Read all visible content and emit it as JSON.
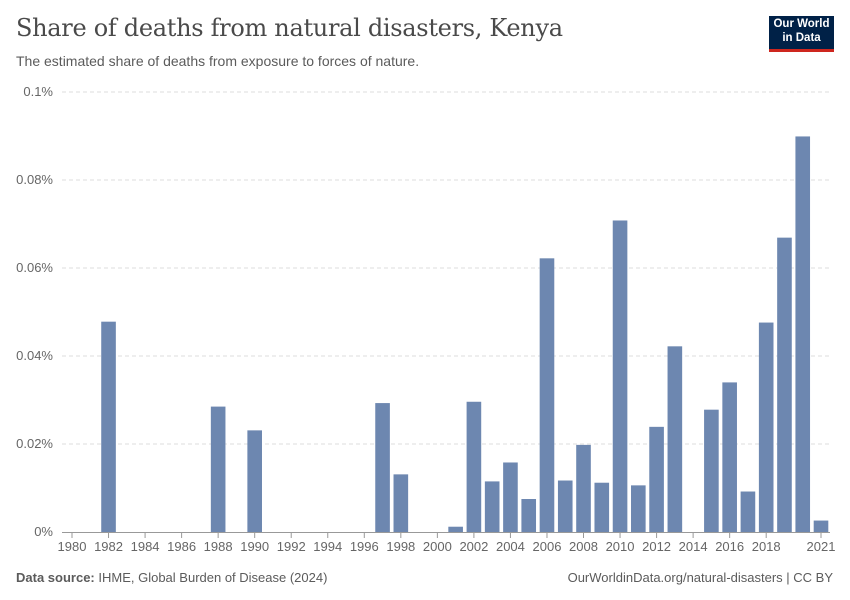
{
  "header": {
    "title": "Share of deaths from natural disasters, Kenya",
    "subtitle": "The estimated share of deaths from exposure to forces of nature."
  },
  "logo": {
    "line1": "Our World",
    "line2": "in Data"
  },
  "footer": {
    "source_label": "Data source:",
    "source_text": "IHME, Global Burden of Disease (2024)",
    "link_text": "OurWorldinData.org/natural-disasters | CC BY"
  },
  "colors": {
    "bar": "#6d87b0",
    "grid": "#dddddd",
    "axis": "#999999",
    "text": "#666666"
  },
  "chart_data": {
    "type": "bar",
    "title": "Share of deaths from natural disasters, Kenya",
    "xlabel": "",
    "ylabel": "",
    "ylim": [
      0,
      0.1
    ],
    "yticks": [
      0,
      0.02,
      0.04,
      0.06,
      0.08,
      0.1
    ],
    "ytick_labels": [
      "0%",
      "0.02%",
      "0.04%",
      "0.06%",
      "0.08%",
      "0.1%"
    ],
    "xlim": [
      1980,
      2021
    ],
    "xticks": [
      1980,
      1982,
      1984,
      1986,
      1988,
      1990,
      1992,
      1994,
      1996,
      1998,
      2000,
      2002,
      2004,
      2006,
      2008,
      2010,
      2012,
      2014,
      2016,
      2018,
      2021
    ],
    "xtick_labels": [
      "1980",
      "1982",
      "1984",
      "1986",
      "1988",
      "1990",
      "1992",
      "1994",
      "1996",
      "1998",
      "2000",
      "2002",
      "2004",
      "2006",
      "2008",
      "2010",
      "2012",
      "2014",
      "2016",
      "2018",
      "2021"
    ],
    "unit": "%",
    "x": [
      1982,
      1988,
      1990,
      1997,
      1998,
      2001,
      2002,
      2003,
      2004,
      2005,
      2006,
      2007,
      2008,
      2009,
      2010,
      2011,
      2012,
      2013,
      2015,
      2016,
      2017,
      2018,
      2019,
      2020,
      2021
    ],
    "values": [
      0.0478,
      0.0285,
      0.0231,
      0.0293,
      0.0131,
      0.0012,
      0.0296,
      0.0115,
      0.0158,
      0.0075,
      0.0622,
      0.0117,
      0.0198,
      0.0112,
      0.0708,
      0.0106,
      0.0239,
      0.0422,
      0.0278,
      0.034,
      0.0092,
      0.0476,
      0.0669,
      0.0899,
      0.0026
    ]
  }
}
